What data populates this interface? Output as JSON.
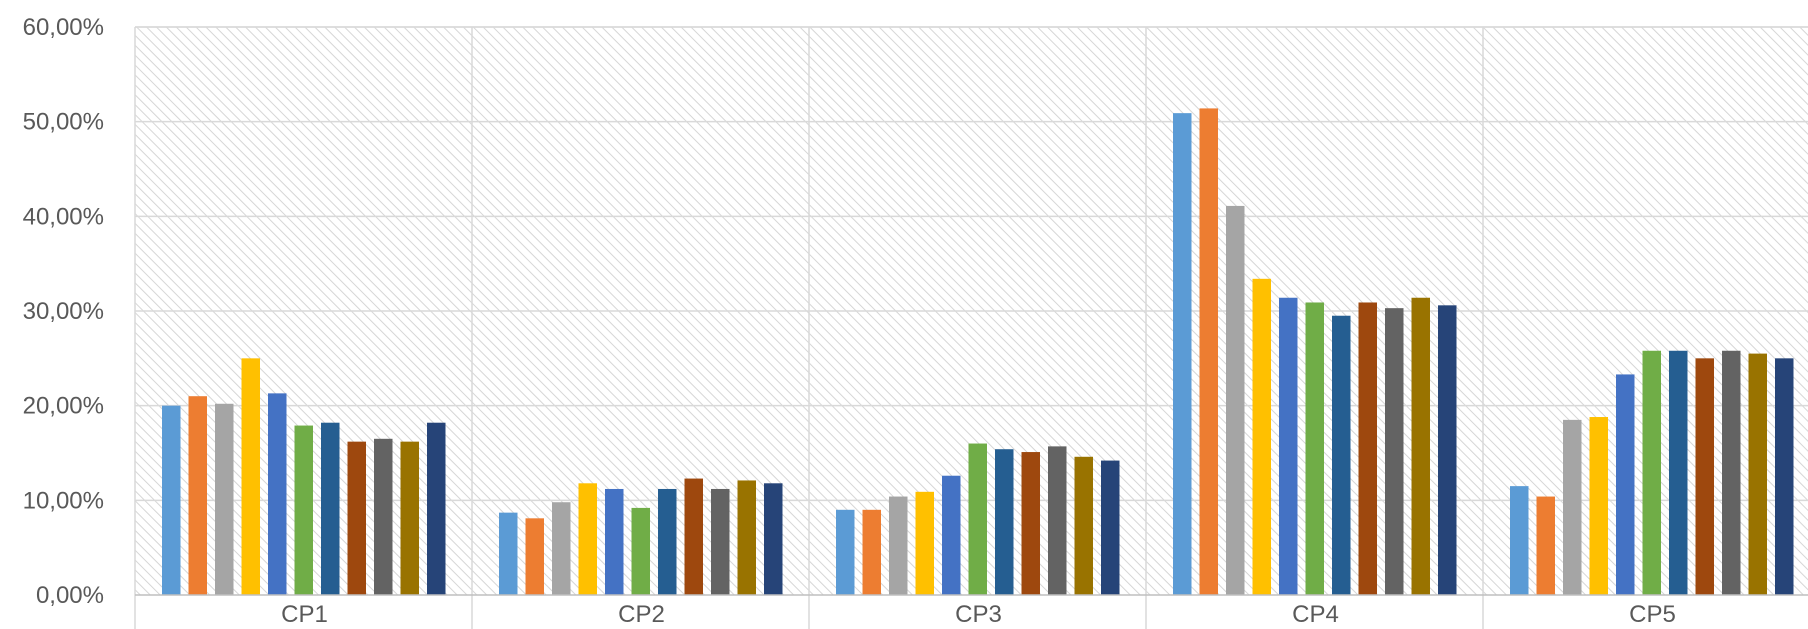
{
  "chart_data": {
    "type": "bar",
    "title": "",
    "xlabel": "",
    "ylabel": "",
    "ylim": [
      0,
      60
    ],
    "y_ticks": [
      "0,00%",
      "10,00%",
      "20,00%",
      "30,00%",
      "40,00%",
      "50,00%",
      "60,00%"
    ],
    "categories": [
      "CP1",
      "CP2",
      "CP3",
      "CP4",
      "CP5"
    ],
    "grid": true,
    "legend": "none",
    "colors": [
      "#5B9BD5",
      "#ED7D31",
      "#A5A5A5",
      "#FFC000",
      "#4472C4",
      "#70AD47",
      "#255E91",
      "#9E480E",
      "#636363",
      "#997300",
      "#264478"
    ],
    "background": "hatched light gray",
    "series": [
      {
        "values": [
          20.0,
          8.7,
          9.0,
          50.9,
          11.5
        ]
      },
      {
        "values": [
          21.0,
          8.1,
          9.0,
          51.4,
          10.4
        ]
      },
      {
        "values": [
          20.2,
          9.8,
          10.4,
          41.1,
          18.5
        ]
      },
      {
        "values": [
          25.0,
          11.8,
          10.9,
          33.4,
          18.8
        ]
      },
      {
        "values": [
          21.3,
          11.2,
          12.6,
          31.4,
          23.3
        ]
      },
      {
        "values": [
          17.9,
          9.2,
          16.0,
          30.9,
          25.8
        ]
      },
      {
        "values": [
          18.2,
          11.2,
          15.4,
          29.5,
          25.8
        ]
      },
      {
        "values": [
          16.2,
          12.3,
          15.1,
          30.9,
          25.0
        ]
      },
      {
        "values": [
          16.5,
          11.2,
          15.7,
          30.3,
          25.8
        ]
      },
      {
        "values": [
          16.2,
          12.1,
          14.6,
          31.4,
          25.5
        ]
      },
      {
        "values": [
          18.2,
          11.8,
          14.2,
          30.6,
          25.0
        ]
      }
    ]
  }
}
